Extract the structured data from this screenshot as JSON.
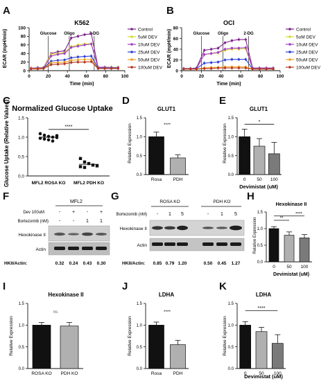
{
  "panels": {
    "A": "A",
    "B": "B",
    "C": "C",
    "D": "D",
    "E": "E",
    "F": "F",
    "G": "G",
    "H": "H",
    "I": "I",
    "J": "J",
    "K": "K"
  },
  "legend_entries": [
    {
      "label": "Control",
      "color": "#7b1f8c"
    },
    {
      "label": "5uM DEV",
      "color": "#d9d92a"
    },
    {
      "label": "10uM DEV",
      "color": "#a23bc4"
    },
    {
      "label": "25uM DEV",
      "color": "#2b3fd6"
    },
    {
      "label": "50uM DEV",
      "color": "#f0a020"
    },
    {
      "label": "100uM DEV",
      "color": "#b5331f"
    }
  ],
  "blots": {
    "F": {
      "title": "MFL2",
      "dev_label": "Dev 100uM",
      "dev_signs": [
        "-",
        "+",
        "-",
        "+"
      ],
      "bort_label": "Bortezomib (nM)",
      "bort_values": [
        "-",
        "-",
        "1",
        "1"
      ],
      "band1": "Hexokinase II",
      "band2": "Actin",
      "ratio_label": "HKII/Actin:",
      "ratios": [
        "0.32",
        "0.24",
        "0.43",
        "0.30"
      ]
    },
    "G": {
      "group1": "ROSA KO",
      "group2": "PDH KO",
      "bort_label": "Bortezomib (nM)",
      "bort_values": [
        "-",
        "1",
        "5",
        "-",
        "1",
        "5"
      ],
      "band1": "Hexokinase II",
      "band2": "Actin",
      "ratio_label": "HKII/Actin:",
      "ratios": [
        "0.85",
        "0.79",
        "1.20",
        "0.50",
        "0.45",
        "1.27"
      ]
    }
  },
  "chart_data": [
    {
      "id": "A",
      "type": "line",
      "title": "K562",
      "xlabel": "Time (min)",
      "ylabel": "ECAR (mpH/min)",
      "xlim": [
        0,
        100
      ],
      "ylim": [
        0,
        100
      ],
      "xticks": [
        0,
        20,
        40,
        60,
        80,
        100
      ],
      "yticks": [
        0,
        20,
        40,
        60,
        80,
        100
      ],
      "annotations": [
        {
          "text": "Glucose",
          "x": 20
        },
        {
          "text": "Oligo",
          "x": 42
        },
        {
          "text": "2-DG",
          "x": 68
        }
      ],
      "x": [
        2,
        9,
        15,
        23,
        30,
        37,
        44,
        51,
        58,
        65,
        72,
        79,
        86,
        93
      ],
      "series": [
        {
          "name": "Control",
          "values": [
            6,
            7,
            7,
            40,
            44,
            46,
            76,
            80,
            84,
            86,
            8,
            8,
            8,
            8
          ]
        },
        {
          "name": "5uM DEV",
          "values": [
            6,
            6,
            7,
            38,
            40,
            42,
            56,
            60,
            62,
            63,
            7,
            7,
            8,
            8
          ]
        },
        {
          "name": "10uM DEV",
          "values": [
            6,
            6,
            6,
            34,
            38,
            40,
            54,
            57,
            60,
            62,
            7,
            7,
            7,
            7
          ]
        },
        {
          "name": "25uM DEV",
          "values": [
            5,
            5,
            6,
            22,
            24,
            25,
            30,
            32,
            33,
            34,
            6,
            6,
            6,
            6
          ]
        },
        {
          "name": "50uM DEV",
          "values": [
            5,
            5,
            5,
            18,
            19,
            20,
            24,
            25,
            26,
            26,
            5,
            5,
            5,
            5
          ]
        },
        {
          "name": "100uM DEV",
          "values": [
            4,
            4,
            5,
            14,
            15,
            16,
            19,
            20,
            20,
            21,
            5,
            5,
            5,
            5
          ]
        }
      ]
    },
    {
      "id": "B",
      "type": "line",
      "title": "OCI",
      "xlabel": "Time (min)",
      "ylabel": "ECAR (mpH/min)",
      "xlim": [
        0,
        100
      ],
      "ylim": [
        0,
        80
      ],
      "xticks": [
        0,
        20,
        40,
        60,
        80,
        100
      ],
      "yticks": [
        0,
        20,
        40,
        60,
        80
      ],
      "annotations": [
        {
          "text": "Glucose",
          "x": 20
        },
        {
          "text": "Oligo",
          "x": 42
        },
        {
          "text": "2-DG",
          "x": 68
        }
      ],
      "x": [
        2,
        9,
        15,
        23,
        30,
        37,
        44,
        51,
        58,
        65,
        72,
        79,
        86,
        93
      ],
      "series": [
        {
          "name": "Control",
          "values": [
            4,
            4,
            5,
            38,
            40,
            42,
            52,
            56,
            58,
            58,
            5,
            5,
            5,
            5
          ]
        },
        {
          "name": "5uM DEV",
          "values": [
            4,
            4,
            4,
            30,
            32,
            33,
            38,
            40,
            40,
            41,
            4,
            4,
            4,
            4
          ]
        },
        {
          "name": "10uM DEV",
          "values": [
            4,
            4,
            4,
            30,
            32,
            34,
            40,
            42,
            42,
            43,
            4,
            4,
            4,
            4
          ]
        },
        {
          "name": "25uM DEV",
          "values": [
            3,
            3,
            4,
            14,
            15,
            16,
            20,
            21,
            21,
            21,
            3,
            3,
            3,
            3
          ]
        },
        {
          "name": "50uM DEV",
          "values": [
            3,
            3,
            3,
            5,
            6,
            6,
            7,
            7,
            7,
            7,
            3,
            3,
            3,
            3
          ]
        },
        {
          "name": "100uM DEV",
          "values": [
            3,
            3,
            3,
            4,
            4,
            5,
            5,
            5,
            5,
            5,
            3,
            3,
            3,
            3
          ]
        }
      ]
    },
    {
      "id": "C",
      "type": "scatter",
      "title": "Normalized Glucose Uptake",
      "ylabel": "Glucose Uptake (Relative Values)",
      "categories": [
        "MFL2 ROSA KO",
        "MFL2 PDH KO"
      ],
      "ylim": [
        0,
        1.5
      ],
      "yticks": [
        0.0,
        0.5,
        1.0,
        1.5
      ],
      "groups": [
        {
          "name": "MFL2 ROSA KO",
          "marker": "circle",
          "mean": 1.0,
          "points": [
            1.09,
            1.05,
            1.02,
            1.0,
            0.99,
            0.97,
            0.95,
            0.93,
            0.9,
            1.04
          ]
        },
        {
          "name": "MFL2 PDH KO",
          "marker": "square",
          "mean": 0.3,
          "points": [
            0.45,
            0.36,
            0.32,
            0.28,
            0.26,
            0.24,
            0.22
          ]
        }
      ],
      "significance": "****"
    },
    {
      "id": "D",
      "type": "bar",
      "title": "GLUT1",
      "ylabel": "Relative Expression",
      "categories": [
        "Rosa",
        "PDH"
      ],
      "values": [
        1.0,
        0.44
      ],
      "errors": [
        0.12,
        0.08
      ],
      "colors": [
        "#111111",
        "#b0b0b0"
      ],
      "ylim": [
        0,
        1.5
      ],
      "yticks": [
        0.0,
        0.5,
        1.0,
        1.5
      ],
      "significance": "****"
    },
    {
      "id": "E",
      "type": "bar",
      "title": "GLUT1",
      "xlabel": "Devimistat (uM)",
      "ylabel": "Relative Expression",
      "categories": [
        "0",
        "50",
        "100"
      ],
      "values": [
        1.0,
        0.75,
        0.55
      ],
      "errors": [
        0.2,
        0.2,
        0.3
      ],
      "colors": [
        "#111111",
        "#b0b0b0",
        "#7a7a7a"
      ],
      "ylim": [
        0,
        1.5
      ],
      "yticks": [
        0.0,
        0.5,
        1.0,
        1.5
      ],
      "significance": "*"
    },
    {
      "id": "H",
      "type": "bar",
      "title": "Hexokinase II",
      "xlabel": "Devimistat (uM)",
      "ylabel": "Relative Expression",
      "categories": [
        "0",
        "50",
        "100"
      ],
      "values": [
        1.0,
        0.8,
        0.72
      ],
      "errors": [
        0.06,
        0.1,
        0.1
      ],
      "colors": [
        "#111111",
        "#b0b0b0",
        "#7a7a7a"
      ],
      "ylim": [
        0,
        1.5
      ],
      "yticks": [
        0.0,
        0.5,
        1.0,
        1.5
      ],
      "significance": [
        "**",
        "****"
      ]
    },
    {
      "id": "I",
      "type": "bar",
      "title": "Hexokinase II",
      "ylabel": "Relative Expression",
      "categories": [
        "ROSA KO",
        "PDH KO"
      ],
      "values": [
        1.0,
        0.98
      ],
      "errors": [
        0.06,
        0.08
      ],
      "colors": [
        "#111111",
        "#b0b0b0"
      ],
      "ylim": [
        0,
        1.5
      ],
      "yticks": [
        0.0,
        0.5,
        1.0,
        1.5
      ],
      "significance": "ns"
    },
    {
      "id": "J",
      "type": "bar",
      "title": "LDHA",
      "ylabel": "Relative Expression",
      "categories": [
        "Rosa",
        "PDH"
      ],
      "values": [
        1.0,
        0.55
      ],
      "errors": [
        0.07,
        0.1
      ],
      "colors": [
        "#111111",
        "#b0b0b0"
      ],
      "ylim": [
        0,
        1.5
      ],
      "yticks": [
        0.0,
        0.5,
        1.0,
        1.5
      ],
      "significance": "****"
    },
    {
      "id": "K",
      "type": "bar",
      "title": "LDHA",
      "xlabel": "Devimistat (uM)",
      "ylabel": "Relative Expression",
      "categories": [
        "0",
        "50",
        "100"
      ],
      "values": [
        1.0,
        0.85,
        0.58
      ],
      "errors": [
        0.08,
        0.1,
        0.2
      ],
      "colors": [
        "#111111",
        "#b0b0b0",
        "#7a7a7a"
      ],
      "ylim": [
        0,
        1.5
      ],
      "yticks": [
        0.0,
        0.5,
        1.0,
        1.5
      ],
      "significance": "****"
    }
  ]
}
